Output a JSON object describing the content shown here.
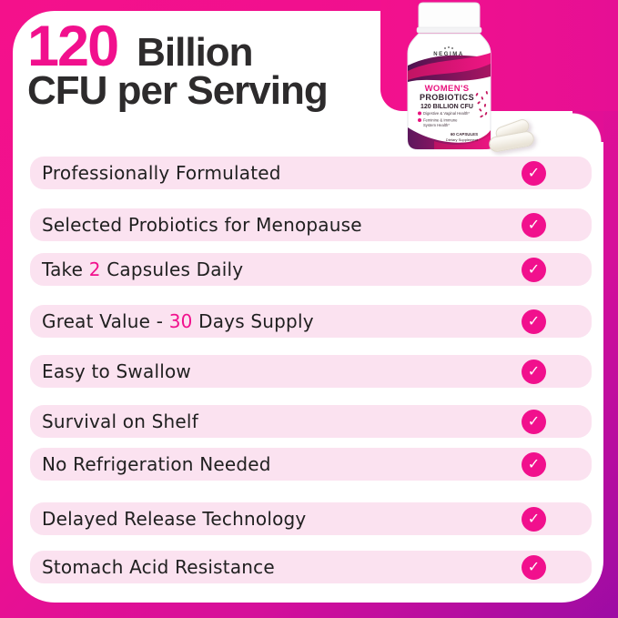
{
  "header": {
    "cfu_count": "120",
    "unit": "Billion",
    "line2": "CFU per Serving"
  },
  "product_label": {
    "brand": "NEGIMA",
    "product_line1": "WOMEN'S",
    "product_line2": "PROBIOTICS",
    "product_line3": "120 BILLION CFU",
    "benefit1": "Digestive & Vaginal Health*",
    "benefit2": "Feminine & Immune",
    "benefit3": "System Health*",
    "capsule_count": "60 CAPSULES",
    "supplement_type": "Dietary Supplement"
  },
  "features": [
    {
      "parts": [
        {
          "t": "Professionally Formulated"
        }
      ]
    },
    {
      "parts": [
        {
          "t": "Selected Probiotics for Menopause"
        }
      ]
    },
    {
      "parts": [
        {
          "t": "Take "
        },
        {
          "t": "2",
          "accent": true
        },
        {
          "t": " Capsules Daily"
        }
      ]
    },
    {
      "parts": [
        {
          "t": "Great Value - "
        },
        {
          "t": "30",
          "accent": true
        },
        {
          "t": " Days Supply"
        }
      ]
    },
    {
      "parts": [
        {
          "t": "Easy to Swallow"
        }
      ]
    },
    {
      "parts": [
        {
          "t": "Survival on Shelf"
        }
      ]
    },
    {
      "parts": [
        {
          "t": "No Refrigeration Needed"
        }
      ]
    },
    {
      "parts": [
        {
          "t": "Delayed Release Technology"
        }
      ]
    },
    {
      "parts": [
        {
          "t": "Stomach Acid Resistance"
        }
      ]
    }
  ],
  "icons": {
    "check": "✓"
  },
  "colors": {
    "accent_magenta": "#F1108D",
    "border_gradient_start": "#F4118B",
    "border_gradient_end": "#9D0BA4",
    "row_background": "#FBE2F0",
    "check_circle": "#F1108D",
    "headline_dark": "#2D2B2C"
  }
}
